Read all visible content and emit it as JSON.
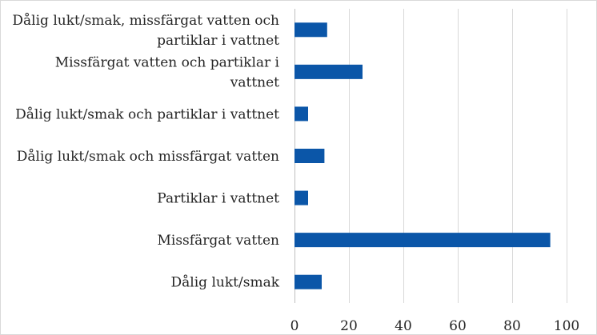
{
  "colors": {
    "bar": "#0b56a8",
    "grid": "#d9d9d9",
    "text": "#262626"
  },
  "chart_data": {
    "type": "bar",
    "orientation": "horizontal",
    "categories": [
      [
        "Dålig lukt/smak, missfärgat vatten och",
        "partiklar i vattnet"
      ],
      [
        "Missfärgat vatten och partiklar i",
        "vattnet"
      ],
      [
        "Dålig lukt/smak och partiklar i vattnet"
      ],
      [
        "Dålig lukt/smak och missfärgat vatten"
      ],
      [
        "Partiklar i vattnet"
      ],
      [
        "Missfärgat vatten"
      ],
      [
        "Dålig lukt/smak"
      ]
    ],
    "values": [
      12,
      25,
      5,
      11,
      5,
      94,
      10
    ],
    "xlim": [
      0,
      100
    ],
    "xticks": [
      0,
      20,
      40,
      60,
      80,
      100
    ],
    "grid": true,
    "title": "",
    "xlabel": "",
    "ylabel": ""
  }
}
